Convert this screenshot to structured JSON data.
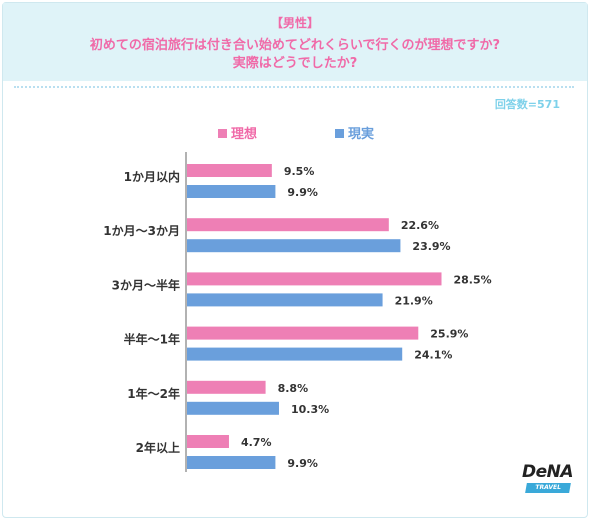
{
  "header": {
    "subtitle": "【男性】",
    "title_line1": "初めての宿泊旅行は付き合い始めてどれくらいで行くのが理想ですか?",
    "title_line2": "実際はどうでしたか?"
  },
  "note": "回答数=571",
  "logo": {
    "name": "DeNA",
    "sub": "TRAVEL"
  },
  "colors": {
    "ideal": "#ee7fb5",
    "actual": "#6a9fdc",
    "accent": "#f06aa8",
    "band": "#dff3f8"
  },
  "chart_data": {
    "type": "bar",
    "orientation": "horizontal",
    "categories": [
      "1か月以内",
      "1か月～3か月",
      "3か月～半年",
      "半年～1年",
      "1年～2年",
      "2年以上"
    ],
    "series": [
      {
        "name": "理想",
        "values": [
          9.5,
          22.6,
          28.5,
          25.9,
          8.8,
          4.7
        ],
        "value_labels": [
          "9.5%",
          "22.6%",
          "28.5%",
          "25.9%",
          "8.8%",
          "4.7%"
        ]
      },
      {
        "name": "現実",
        "values": [
          9.9,
          23.9,
          21.9,
          24.1,
          10.3,
          9.9
        ],
        "value_labels": [
          "9.9%",
          "23.9%",
          "21.9%",
          "24.1%",
          "10.3%",
          "9.9%"
        ]
      }
    ],
    "unit": "%",
    "legend_position": "top"
  }
}
